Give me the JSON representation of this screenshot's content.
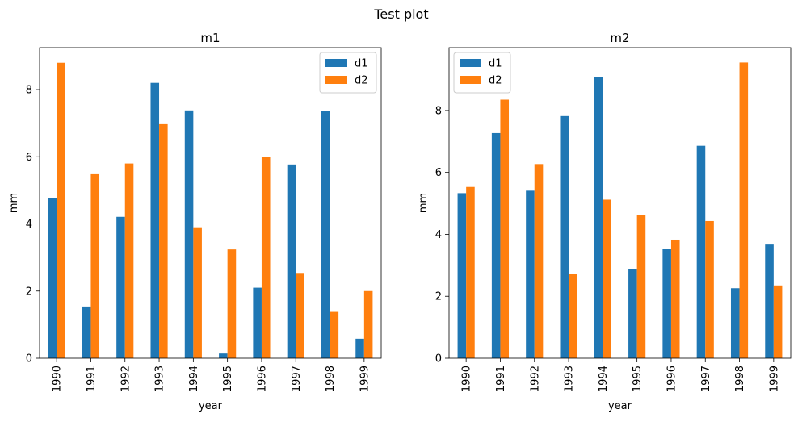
{
  "figure": {
    "suptitle": "Test plot"
  },
  "colors": {
    "d1": "#1f77b4",
    "d2": "#ff7f0e"
  },
  "chart_data": [
    {
      "type": "bar",
      "title": "m1",
      "xlabel": "year",
      "ylabel": "mm",
      "categories": [
        "1990",
        "1991",
        "1992",
        "1993",
        "1994",
        "1995",
        "1996",
        "1997",
        "1998",
        "1999"
      ],
      "series": [
        {
          "name": "d1",
          "values": [
            4.78,
            1.54,
            4.21,
            8.2,
            7.38,
            0.14,
            2.1,
            5.77,
            7.36,
            0.58
          ]
        },
        {
          "name": "d2",
          "values": [
            8.8,
            5.48,
            5.8,
            6.97,
            3.9,
            3.24,
            6.0,
            2.54,
            1.38,
            2.0
          ]
        }
      ],
      "ylim": [
        0,
        9.25
      ],
      "yticks": [
        0,
        2,
        4,
        6,
        8
      ],
      "legend": "upper right",
      "grid": false
    },
    {
      "type": "bar",
      "title": "m2",
      "xlabel": "year",
      "ylabel": "mm",
      "categories": [
        "1990",
        "1991",
        "1992",
        "1993",
        "1994",
        "1995",
        "1996",
        "1997",
        "1998",
        "1999"
      ],
      "series": [
        {
          "name": "d1",
          "values": [
            5.33,
            7.27,
            5.41,
            7.82,
            9.07,
            2.89,
            3.53,
            6.86,
            2.26,
            3.67
          ]
        },
        {
          "name": "d2",
          "values": [
            5.53,
            8.35,
            6.27,
            2.73,
            5.12,
            4.63,
            3.83,
            4.43,
            9.55,
            2.35
          ]
        }
      ],
      "ylim": [
        0,
        10.03
      ],
      "yticks": [
        0,
        2,
        4,
        6,
        8
      ],
      "legend": "upper left",
      "grid": false
    }
  ]
}
